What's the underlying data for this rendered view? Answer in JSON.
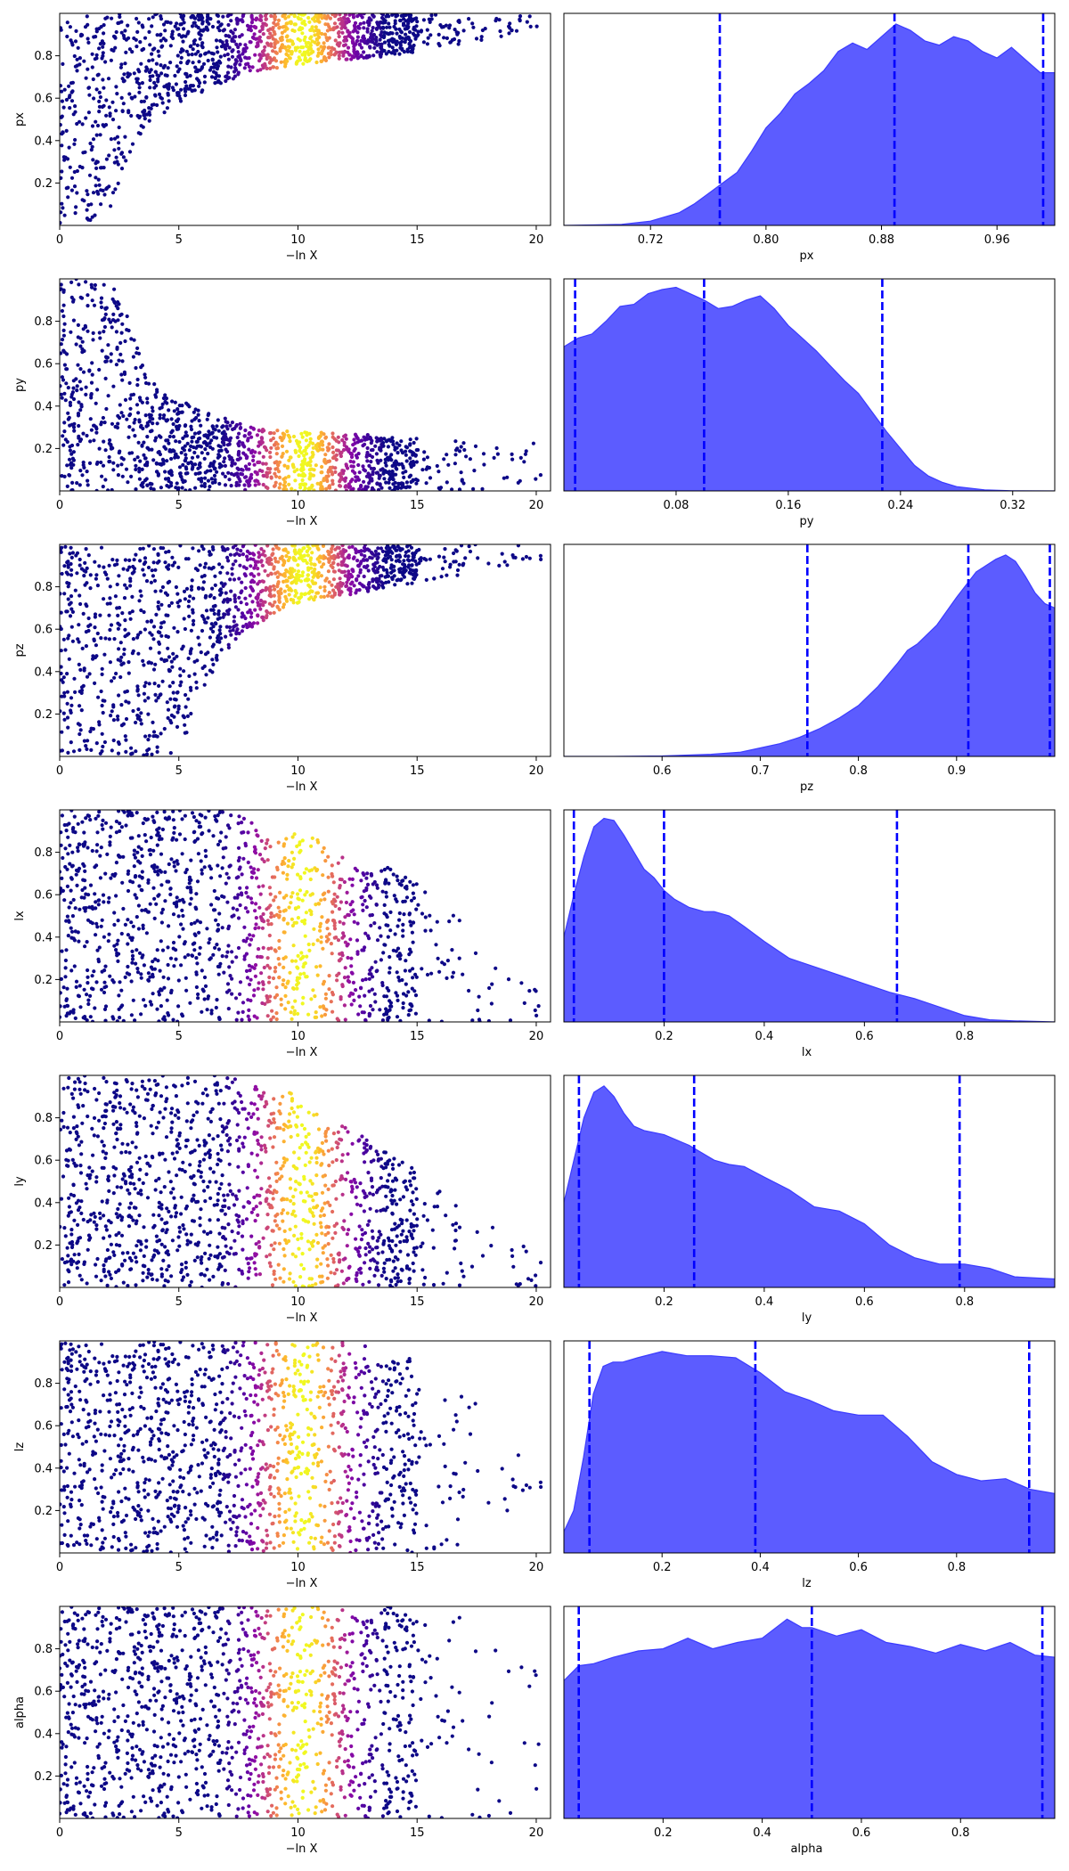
{
  "figure": {
    "x_label_scatter": "−ln X",
    "colors": {
      "scatter_base": "#0d0887",
      "kde_fill": "#5c5cff",
      "kde_edge": "#3b3bff",
      "quantile_line": "#0000ff",
      "axes": "#000000"
    }
  },
  "chart_data": [
    {
      "type": "scatter",
      "variable": "px",
      "ylabel": "px",
      "xlabel": "−ln X",
      "xlim": [
        0,
        20.6
      ],
      "ylim": [
        0,
        1
      ],
      "xticks": [
        "0",
        "5",
        "10",
        "15",
        "20"
      ],
      "yticks": [
        "0.2",
        "0.4",
        "0.6",
        "0.8"
      ],
      "colormap": "plasma, peaking near −ln X ≈ 10",
      "envelope": {
        "x": [
          0,
          1,
          2,
          2.5,
          3,
          3.5,
          4,
          5,
          6,
          7,
          8,
          9,
          10,
          12,
          14,
          16,
          18,
          20
        ],
        "lower": [
          0,
          0,
          0.05,
          0.2,
          0.35,
          0.45,
          0.5,
          0.58,
          0.63,
          0.68,
          0.72,
          0.74,
          0.76,
          0.78,
          0.8,
          0.84,
          0.88,
          0.92
        ],
        "upper": [
          1,
          1,
          1,
          1,
          1,
          1,
          1,
          1,
          1,
          1,
          1,
          1,
          1,
          1,
          1,
          1,
          1,
          1
        ]
      }
    },
    {
      "type": "area",
      "variable": "px",
      "xlabel": "px",
      "xlim": [
        0.66,
        1.0
      ],
      "xticks": [
        "0.72",
        "0.80",
        "0.88",
        "0.96"
      ],
      "quantiles": [
        0.768,
        0.889,
        0.992
      ],
      "x": [
        0.66,
        0.68,
        0.7,
        0.72,
        0.74,
        0.75,
        0.76,
        0.77,
        0.78,
        0.79,
        0.8,
        0.81,
        0.82,
        0.83,
        0.84,
        0.85,
        0.86,
        0.87,
        0.88,
        0.89,
        0.9,
        0.91,
        0.92,
        0.93,
        0.94,
        0.95,
        0.96,
        0.97,
        0.98,
        0.99,
        1.0
      ],
      "density": [
        0,
        0.002,
        0.005,
        0.02,
        0.06,
        0.1,
        0.15,
        0.2,
        0.25,
        0.35,
        0.46,
        0.53,
        0.62,
        0.67,
        0.73,
        0.82,
        0.86,
        0.83,
        0.89,
        0.95,
        0.92,
        0.87,
        0.85,
        0.89,
        0.87,
        0.82,
        0.79,
        0.84,
        0.78,
        0.72,
        0.72
      ]
    },
    {
      "type": "scatter",
      "variable": "py",
      "ylabel": "py",
      "xlabel": "−ln X",
      "xlim": [
        0,
        20.6
      ],
      "ylim": [
        0,
        1
      ],
      "xticks": [
        "0",
        "5",
        "10",
        "15",
        "20"
      ],
      "yticks": [
        "0.2",
        "0.4",
        "0.6",
        "0.8"
      ],
      "colormap": "plasma, peaking near −ln X ≈ 10",
      "envelope": {
        "x": [
          0,
          1,
          2,
          2.5,
          3,
          3.5,
          4,
          5,
          6,
          7,
          8,
          10,
          12,
          14,
          16,
          18,
          20
        ],
        "lower": [
          0,
          0,
          0,
          0,
          0,
          0,
          0,
          0,
          0,
          0,
          0,
          0,
          0,
          0,
          0,
          0,
          0.05
        ],
        "upper": [
          1,
          1,
          1,
          0.95,
          0.78,
          0.6,
          0.5,
          0.43,
          0.38,
          0.34,
          0.3,
          0.28,
          0.27,
          0.26,
          0.25,
          0.24,
          0.23
        ]
      }
    },
    {
      "type": "area",
      "variable": "py",
      "xlabel": "py",
      "xlim": [
        0.0,
        0.35
      ],
      "xticks": [
        "0.08",
        "0.16",
        "0.24",
        "0.32"
      ],
      "quantiles": [
        0.008,
        0.1,
        0.227
      ],
      "x": [
        0.0,
        0.01,
        0.02,
        0.03,
        0.04,
        0.05,
        0.06,
        0.07,
        0.08,
        0.09,
        0.1,
        0.11,
        0.12,
        0.13,
        0.14,
        0.15,
        0.16,
        0.17,
        0.18,
        0.19,
        0.2,
        0.21,
        0.22,
        0.23,
        0.24,
        0.25,
        0.26,
        0.27,
        0.28,
        0.3,
        0.32,
        0.35
      ],
      "density": [
        0.68,
        0.72,
        0.74,
        0.8,
        0.87,
        0.88,
        0.93,
        0.95,
        0.96,
        0.93,
        0.9,
        0.86,
        0.87,
        0.9,
        0.92,
        0.86,
        0.78,
        0.72,
        0.66,
        0.59,
        0.52,
        0.46,
        0.37,
        0.28,
        0.2,
        0.12,
        0.07,
        0.04,
        0.02,
        0.005,
        0.001,
        0
      ]
    },
    {
      "type": "scatter",
      "variable": "pz",
      "ylabel": "pz",
      "xlabel": "−ln X",
      "xlim": [
        0,
        20.6
      ],
      "ylim": [
        0,
        1
      ],
      "xticks": [
        "0",
        "5",
        "10",
        "15",
        "20"
      ],
      "yticks": [
        "0.2",
        "0.4",
        "0.6",
        "0.8"
      ],
      "colormap": "plasma, peaking near −ln X ≈ 10",
      "envelope": {
        "x": [
          0,
          1,
          2,
          3,
          4,
          5,
          6,
          7,
          8,
          9,
          10,
          12,
          14,
          16,
          18,
          20
        ],
        "lower": [
          0,
          0,
          0,
          0,
          0,
          0.02,
          0.3,
          0.5,
          0.6,
          0.67,
          0.72,
          0.76,
          0.8,
          0.84,
          0.88,
          0.92
        ],
        "upper": [
          1,
          1,
          1,
          1,
          1,
          1,
          1,
          1,
          1,
          1,
          1,
          1,
          1,
          1,
          1,
          1
        ]
      }
    },
    {
      "type": "area",
      "variable": "pz",
      "xlabel": "pz",
      "xlim": [
        0.5,
        1.0
      ],
      "xticks": [
        "0.6",
        "0.7",
        "0.8",
        "0.9"
      ],
      "quantiles": [
        0.748,
        0.912,
        0.995
      ],
      "x": [
        0.5,
        0.55,
        0.6,
        0.65,
        0.68,
        0.7,
        0.72,
        0.74,
        0.76,
        0.78,
        0.8,
        0.82,
        0.84,
        0.85,
        0.86,
        0.88,
        0.9,
        0.92,
        0.93,
        0.94,
        0.95,
        0.96,
        0.97,
        0.98,
        0.99,
        1.0
      ],
      "density": [
        0,
        0,
        0.002,
        0.01,
        0.02,
        0.04,
        0.06,
        0.09,
        0.13,
        0.18,
        0.24,
        0.33,
        0.44,
        0.5,
        0.53,
        0.62,
        0.75,
        0.87,
        0.9,
        0.93,
        0.95,
        0.92,
        0.85,
        0.77,
        0.72,
        0.7
      ]
    },
    {
      "type": "scatter",
      "variable": "lx",
      "ylabel": "lx",
      "xlabel": "−ln X",
      "xlim": [
        0,
        20.6
      ],
      "ylim": [
        0,
        1
      ],
      "xticks": [
        "0",
        "5",
        "10",
        "15",
        "20"
      ],
      "yticks": [
        "0.2",
        "0.4",
        "0.6",
        "0.8"
      ],
      "colormap": "plasma, peaking near −ln X ≈ 10",
      "envelope": {
        "x": [
          0,
          2,
          4,
          6,
          7,
          8,
          9,
          10,
          11,
          12,
          13,
          14,
          15,
          16,
          17,
          18,
          20
        ],
        "lower": [
          0,
          0,
          0,
          0,
          0,
          0,
          0,
          0,
          0,
          0,
          0,
          0,
          0,
          0,
          0,
          0,
          0
        ],
        "upper": [
          1,
          1,
          1,
          1,
          1,
          0.95,
          0.85,
          0.9,
          0.85,
          0.78,
          0.75,
          0.72,
          0.7,
          0.6,
          0.45,
          0.3,
          0.15
        ]
      }
    },
    {
      "type": "area",
      "variable": "lx",
      "xlabel": "lx",
      "xlim": [
        0.0,
        0.98
      ],
      "xticks": [
        "0.2",
        "0.4",
        "0.6",
        "0.8"
      ],
      "quantiles": [
        0.02,
        0.2,
        0.665
      ],
      "x": [
        0.0,
        0.02,
        0.04,
        0.06,
        0.08,
        0.1,
        0.12,
        0.14,
        0.16,
        0.18,
        0.2,
        0.22,
        0.25,
        0.28,
        0.3,
        0.33,
        0.36,
        0.4,
        0.45,
        0.5,
        0.55,
        0.6,
        0.65,
        0.7,
        0.75,
        0.8,
        0.85,
        0.9,
        0.98
      ],
      "density": [
        0.4,
        0.6,
        0.78,
        0.92,
        0.96,
        0.95,
        0.88,
        0.8,
        0.72,
        0.68,
        0.62,
        0.58,
        0.54,
        0.52,
        0.52,
        0.5,
        0.45,
        0.38,
        0.3,
        0.26,
        0.22,
        0.18,
        0.14,
        0.11,
        0.07,
        0.03,
        0.01,
        0.005,
        0
      ]
    },
    {
      "type": "scatter",
      "variable": "ly",
      "ylabel": "ly",
      "xlabel": "−ln X",
      "xlim": [
        0,
        20.6
      ],
      "ylim": [
        0,
        1
      ],
      "xticks": [
        "0",
        "5",
        "10",
        "15",
        "20"
      ],
      "yticks": [
        "0.2",
        "0.4",
        "0.6",
        "0.8"
      ],
      "colormap": "plasma, peaking near −ln X ≈ 10",
      "envelope": {
        "x": [
          0,
          2,
          4,
          6,
          7,
          8,
          9,
          10,
          11,
          12,
          13,
          14,
          15,
          16,
          17,
          18,
          20
        ],
        "lower": [
          0,
          0,
          0,
          0,
          0,
          0,
          0,
          0,
          0,
          0,
          0,
          0,
          0,
          0,
          0,
          0,
          0
        ],
        "upper": [
          1,
          1,
          1,
          1,
          1,
          0.95,
          0.95,
          0.9,
          0.8,
          0.78,
          0.7,
          0.62,
          0.55,
          0.45,
          0.35,
          0.3,
          0.2
        ]
      }
    },
    {
      "type": "area",
      "variable": "ly",
      "xlabel": "ly",
      "xlim": [
        0.0,
        0.98
      ],
      "xticks": [
        "0.2",
        "0.4",
        "0.6",
        "0.8"
      ],
      "quantiles": [
        0.03,
        0.26,
        0.79
      ],
      "x": [
        0.0,
        0.02,
        0.04,
        0.06,
        0.08,
        0.1,
        0.12,
        0.14,
        0.16,
        0.2,
        0.25,
        0.3,
        0.33,
        0.36,
        0.4,
        0.45,
        0.5,
        0.55,
        0.6,
        0.65,
        0.7,
        0.75,
        0.8,
        0.85,
        0.9,
        0.98
      ],
      "density": [
        0.4,
        0.6,
        0.8,
        0.92,
        0.95,
        0.9,
        0.82,
        0.76,
        0.74,
        0.72,
        0.67,
        0.6,
        0.58,
        0.57,
        0.52,
        0.46,
        0.38,
        0.36,
        0.3,
        0.2,
        0.14,
        0.11,
        0.11,
        0.09,
        0.05,
        0.04
      ]
    },
    {
      "type": "scatter",
      "variable": "lz",
      "ylabel": "lz",
      "xlabel": "−ln X",
      "xlim": [
        0,
        20.6
      ],
      "ylim": [
        0,
        1
      ],
      "xticks": [
        "0",
        "5",
        "10",
        "15",
        "20"
      ],
      "yticks": [
        "0.2",
        "0.4",
        "0.6",
        "0.8"
      ],
      "colormap": "plasma, peaking near −ln X ≈ 10",
      "envelope": {
        "x": [
          0,
          2,
          4,
          6,
          8,
          10,
          12,
          13,
          14,
          15,
          16,
          17,
          18,
          19,
          20
        ],
        "lower": [
          0.02,
          0,
          0,
          0,
          0,
          0,
          0,
          0,
          0,
          0,
          0,
          0.05,
          0.1,
          0.2,
          0.3
        ],
        "upper": [
          1,
          1,
          1,
          1,
          1,
          1,
          1,
          0.98,
          0.95,
          0.9,
          0.85,
          0.75,
          0.65,
          0.5,
          0.4
        ]
      }
    },
    {
      "type": "area",
      "variable": "lz",
      "xlabel": "lz",
      "xlim": [
        0.0,
        1.0
      ],
      "xticks": [
        "0.2",
        "0.4",
        "0.6",
        "0.8"
      ],
      "quantiles": [
        0.052,
        0.39,
        0.948
      ],
      "x": [
        0.0,
        0.02,
        0.04,
        0.06,
        0.08,
        0.1,
        0.12,
        0.15,
        0.2,
        0.25,
        0.3,
        0.35,
        0.4,
        0.45,
        0.5,
        0.55,
        0.6,
        0.65,
        0.7,
        0.75,
        0.8,
        0.85,
        0.9,
        0.95,
        1.0
      ],
      "density": [
        0.1,
        0.2,
        0.45,
        0.75,
        0.88,
        0.9,
        0.9,
        0.92,
        0.95,
        0.93,
        0.93,
        0.92,
        0.85,
        0.76,
        0.72,
        0.67,
        0.65,
        0.65,
        0.55,
        0.43,
        0.37,
        0.34,
        0.35,
        0.3,
        0.28
      ]
    },
    {
      "type": "scatter",
      "variable": "alpha",
      "ylabel": "alpha",
      "xlabel": "−ln X",
      "xlim": [
        0,
        20.6
      ],
      "ylim": [
        0,
        1
      ],
      "xticks": [
        "0",
        "5",
        "10",
        "15",
        "20"
      ],
      "yticks": [
        "0.2",
        "0.4",
        "0.6",
        "0.8"
      ],
      "colormap": "plasma, peaking near −ln X ≈ 10",
      "envelope": {
        "x": [
          0,
          2,
          4,
          6,
          8,
          10,
          12,
          14,
          15,
          16,
          17,
          18,
          19,
          20
        ],
        "lower": [
          0,
          0,
          0,
          0,
          0,
          0,
          0,
          0,
          0,
          0,
          0,
          0,
          0,
          0
        ],
        "upper": [
          1,
          1,
          1,
          1,
          1,
          1,
          1,
          1,
          1,
          0.98,
          0.95,
          0.9,
          0.8,
          0.7
        ]
      }
    },
    {
      "type": "area",
      "variable": "alpha",
      "xlabel": "alpha",
      "xlim": [
        0.0,
        0.99
      ],
      "xticks": [
        "0.2",
        "0.4",
        "0.6",
        "0.8"
      ],
      "quantiles": [
        0.03,
        0.5,
        0.965
      ],
      "x": [
        0.0,
        0.03,
        0.06,
        0.1,
        0.15,
        0.2,
        0.25,
        0.3,
        0.35,
        0.4,
        0.45,
        0.48,
        0.5,
        0.55,
        0.6,
        0.65,
        0.7,
        0.75,
        0.8,
        0.85,
        0.9,
        0.95,
        0.99
      ],
      "density": [
        0.65,
        0.72,
        0.73,
        0.76,
        0.79,
        0.8,
        0.85,
        0.8,
        0.83,
        0.85,
        0.94,
        0.9,
        0.9,
        0.86,
        0.89,
        0.83,
        0.81,
        0.78,
        0.82,
        0.79,
        0.83,
        0.77,
        0.76
      ]
    }
  ]
}
